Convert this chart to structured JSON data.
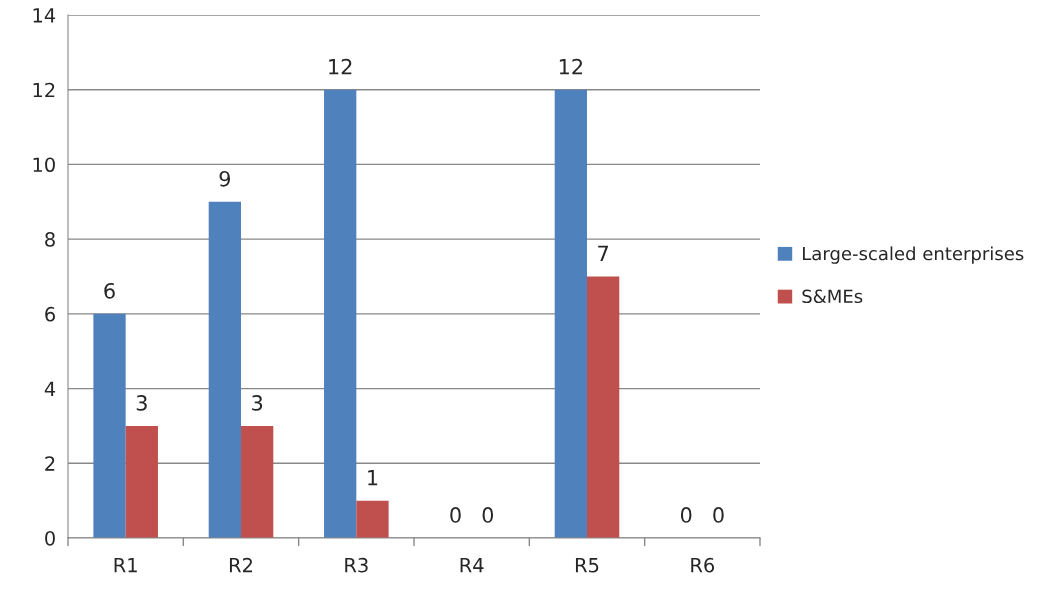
{
  "chart_data": {
    "type": "bar",
    "categories": [
      "R1",
      "R2",
      "R3",
      "R4",
      "R5",
      "R6"
    ],
    "series": [
      {
        "name": "Large-scaled enterprises",
        "color": "#4f81bd",
        "values": [
          6,
          9,
          12,
          0,
          12,
          0
        ]
      },
      {
        "name": "S&MEs",
        "color": "#c0504d",
        "values": [
          3,
          3,
          1,
          0,
          7,
          0
        ]
      }
    ],
    "ylim": [
      0,
      14
    ],
    "yticks": [
      0,
      2,
      4,
      6,
      8,
      10,
      12,
      14
    ],
    "grid": "y",
    "legend": "right",
    "data_labels": true
  }
}
